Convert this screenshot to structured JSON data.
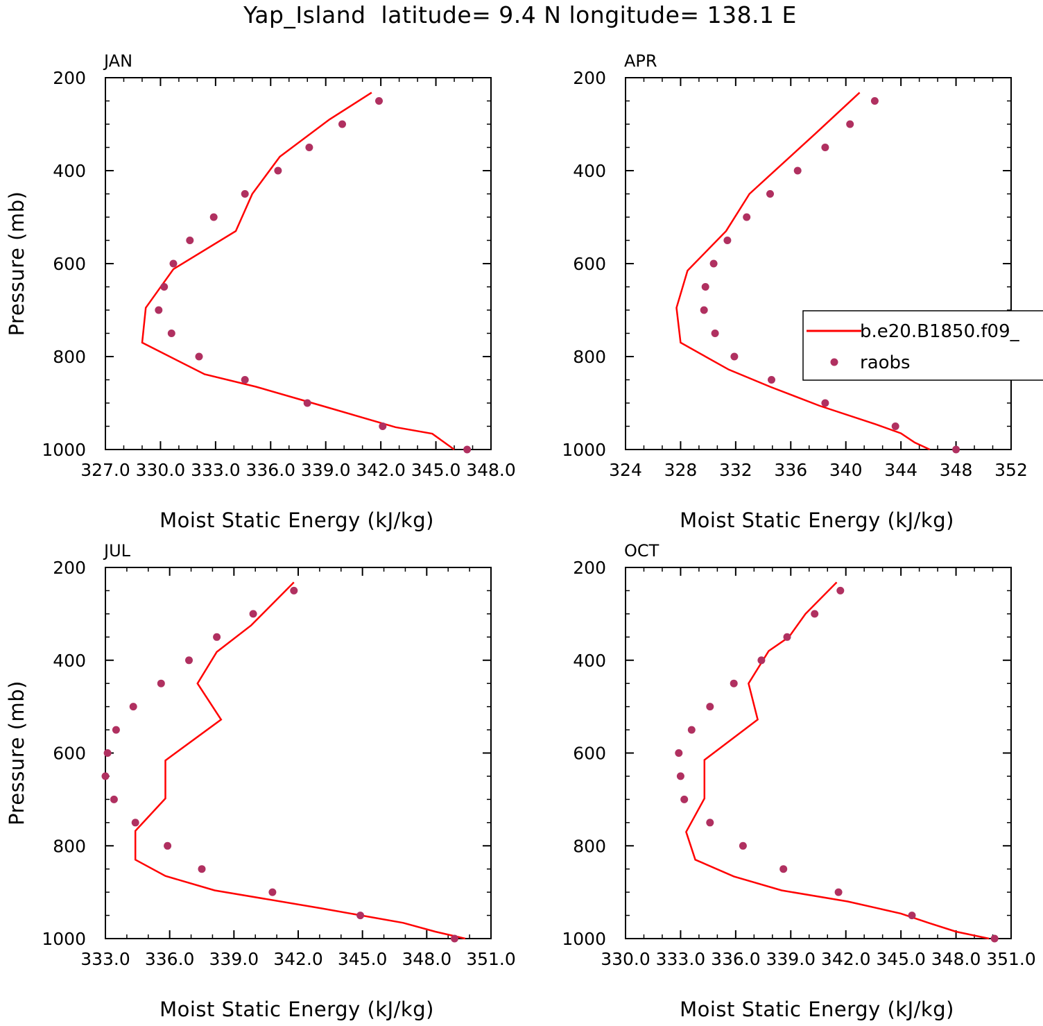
{
  "title": "Yap_Island  latitude= 9.4 N longitude= 138.1 E",
  "colors": {
    "model_line": "#ff0000",
    "raobs_marker": "#b03060"
  },
  "legend": {
    "model_label": "b.e20.B1850.f09_",
    "raobs_label": "raobs"
  },
  "chart_data": [
    {
      "type": "line",
      "panel_label": "JAN",
      "xlabel": "Moist Static Energy (kJ/kg)",
      "ylabel": "Pressure (mb)",
      "xlim": [
        327.0,
        348.0
      ],
      "ylim": [
        200,
        1000
      ],
      "y_inverted": true,
      "xticks": [
        "327.0",
        "330.0",
        "333.0",
        "336.0",
        "339.0",
        "342.0",
        "345.0",
        "348.0"
      ],
      "yticks": [
        "200",
        "400",
        "600",
        "800",
        "1000"
      ],
      "series": [
        {
          "name": "b.e20.B1850.f09_",
          "style": "line",
          "x": [
            341.5,
            339.2,
            336.5,
            335.0,
            334.1,
            330.7,
            329.2,
            329.0,
            332.4,
            335.2,
            338.8,
            342.8,
            344.8,
            346.0
          ],
          "y": [
            232,
            290,
            370,
            450,
            530,
            612,
            695,
            770,
            838,
            865,
            906,
            952,
            966,
            1000
          ]
        },
        {
          "name": "raobs",
          "style": "markers",
          "x": [
            341.9,
            339.9,
            338.1,
            336.4,
            334.6,
            332.9,
            331.6,
            330.7,
            330.2,
            329.9,
            330.6,
            332.1,
            334.6,
            338.0,
            342.1,
            346.7
          ],
          "y": [
            250,
            300,
            350,
            400,
            450,
            500,
            550,
            600,
            650,
            700,
            750,
            800,
            850,
            900,
            950,
            1000
          ]
        }
      ]
    },
    {
      "type": "line",
      "panel_label": "APR",
      "xlabel": "Moist Static Energy (kJ/kg)",
      "ylabel": "",
      "xlim": [
        324,
        352
      ],
      "ylim": [
        200,
        1000
      ],
      "y_inverted": true,
      "xticks": [
        "324",
        "328",
        "332",
        "336",
        "340",
        "344",
        "348",
        "352"
      ],
      "yticks": [
        "200",
        "400",
        "600",
        "800",
        "1000"
      ],
      "series": [
        {
          "name": "b.e20.B1850.f09_",
          "style": "line",
          "x": [
            341.0,
            337.8,
            333.0,
            331.3,
            328.5,
            327.7,
            328.0,
            331.5,
            334.5,
            338.1,
            342.2,
            344.0,
            345.0,
            346.1
          ],
          "y": [
            232,
            320,
            450,
            530,
            615,
            695,
            770,
            828,
            865,
            906,
            946,
            965,
            985,
            1000
          ]
        },
        {
          "name": "raobs",
          "style": "markers",
          "x": [
            342.1,
            340.3,
            338.5,
            336.5,
            334.5,
            332.8,
            331.4,
            330.4,
            329.8,
            329.7,
            330.5,
            331.9,
            334.6,
            338.5,
            343.6,
            348.0
          ],
          "y": [
            250,
            300,
            350,
            400,
            450,
            500,
            550,
            600,
            650,
            700,
            750,
            800,
            850,
            900,
            950,
            1000
          ]
        }
      ]
    },
    {
      "type": "line",
      "panel_label": "JUL",
      "xlabel": "Moist Static Energy (kJ/kg)",
      "ylabel": "Pressure (mb)",
      "xlim": [
        333.0,
        351.0
      ],
      "ylim": [
        200,
        1000
      ],
      "y_inverted": true,
      "xticks": [
        "333.0",
        "336.0",
        "339.0",
        "342.0",
        "345.0",
        "348.0",
        "351.0"
      ],
      "yticks": [
        "200",
        "400",
        "600",
        "800",
        "1000"
      ],
      "series": [
        {
          "name": "b.e20.B1850.f09_",
          "style": "line",
          "x": [
            341.8,
            339.8,
            338.2,
            337.3,
            338.4,
            335.8,
            335.8,
            335.8,
            334.4,
            334.4,
            335.8,
            338.1,
            343.1,
            346.9,
            348.4,
            349.8
          ],
          "y": [
            232,
            325,
            382,
            450,
            528,
            616,
            660,
            698,
            768,
            830,
            865,
            896,
            935,
            966,
            985,
            1000
          ]
        },
        {
          "name": "raobs",
          "style": "markers",
          "x": [
            341.8,
            339.9,
            338.2,
            336.9,
            335.6,
            334.3,
            333.5,
            333.1,
            333.0,
            333.4,
            334.4,
            335.9,
            337.5,
            340.8,
            344.9,
            349.3
          ],
          "y": [
            250,
            300,
            350,
            400,
            450,
            500,
            550,
            600,
            650,
            700,
            750,
            800,
            850,
            900,
            950,
            1000
          ]
        }
      ]
    },
    {
      "type": "line",
      "panel_label": "OCT",
      "xlabel": "Moist Static Energy (kJ/kg)",
      "ylabel": "",
      "xlim": [
        330.0,
        351.0
      ],
      "ylim": [
        200,
        1000
      ],
      "y_inverted": true,
      "xticks": [
        "330.0",
        "333.0",
        "336.0",
        "339.0",
        "342.0",
        "345.0",
        "348.0",
        "351.0"
      ],
      "yticks": [
        "200",
        "400",
        "600",
        "800",
        "1000"
      ],
      "series": [
        {
          "name": "b.e20.B1850.f09_",
          "style": "line",
          "x": [
            341.5,
            339.8,
            338.9,
            337.8,
            336.7,
            337.2,
            334.3,
            334.3,
            334.3,
            333.3,
            333.8,
            335.9,
            338.5,
            342.1,
            345.0,
            346.5,
            348.0,
            349.8
          ],
          "y": [
            232,
            300,
            350,
            380,
            450,
            528,
            615,
            660,
            698,
            770,
            830,
            866,
            896,
            920,
            946,
            966,
            985,
            1000
          ]
        },
        {
          "name": "raobs",
          "style": "markers",
          "x": [
            341.7,
            340.3,
            338.8,
            337.4,
            335.9,
            334.6,
            333.6,
            332.9,
            333.0,
            333.2,
            334.6,
            336.4,
            338.6,
            341.6,
            345.6,
            350.1
          ],
          "y": [
            250,
            300,
            350,
            400,
            450,
            500,
            550,
            600,
            650,
            700,
            750,
            800,
            850,
            900,
            950,
            1000
          ]
        }
      ]
    }
  ]
}
